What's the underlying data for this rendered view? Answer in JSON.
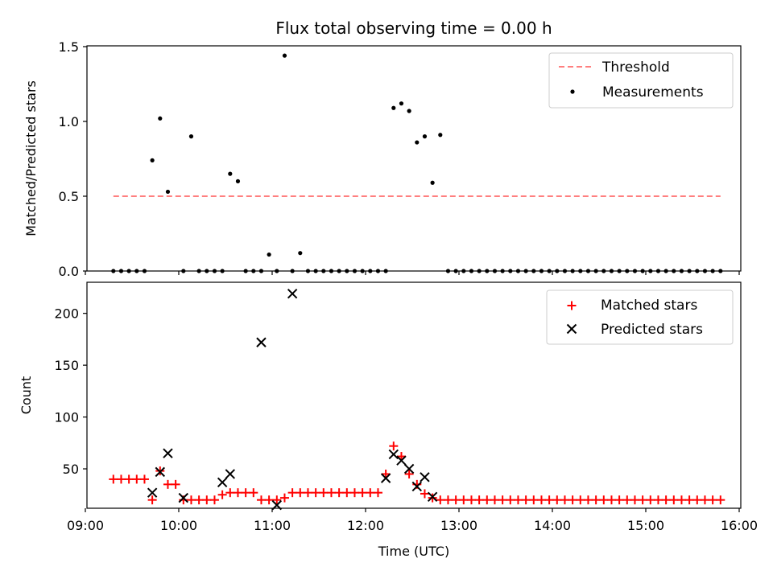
{
  "chart_data": [
    {
      "type": "scatter",
      "title": "Flux total observing time = 0.00 h",
      "xlabel": "",
      "ylabel": "Matched/Predicted stars",
      "ylim": [
        0.0,
        1.5
      ],
      "xlim": [
        "09:00",
        "16:00"
      ],
      "yticks": [
        "0.0",
        "0.5",
        "1.0",
        "1.5"
      ],
      "threshold": {
        "name": "Threshold",
        "value": 0.5,
        "x_start": "09:18",
        "x_end": "15:48",
        "color": "#ff7f7f"
      },
      "series": [
        {
          "name": "Measurements",
          "color": "#000000",
          "x": [
            "09:18",
            "09:23",
            "09:28",
            "09:33",
            "09:38",
            "09:43",
            "09:48",
            "09:53",
            "10:03",
            "10:08",
            "10:13",
            "10:18",
            "10:23",
            "10:28",
            "10:33",
            "10:38",
            "10:43",
            "10:48",
            "10:53",
            "10:58",
            "11:03",
            "11:08",
            "11:13",
            "11:18",
            "11:23",
            "11:28",
            "11:33",
            "11:38",
            "11:43",
            "11:48",
            "11:53",
            "11:58",
            "12:03",
            "12:08",
            "12:13",
            "12:18",
            "12:23",
            "12:28",
            "12:33",
            "12:38",
            "12:43",
            "12:48",
            "12:53",
            "12:58",
            "13:03",
            "13:08",
            "13:13",
            "13:18",
            "13:23",
            "13:28",
            "13:33",
            "13:38",
            "13:43",
            "13:48",
            "13:53",
            "13:58",
            "14:03",
            "14:08",
            "14:13",
            "14:18",
            "14:23",
            "14:28",
            "14:33",
            "14:38",
            "14:43",
            "14:48",
            "14:53",
            "14:58",
            "15:03",
            "15:08",
            "15:13",
            "15:18",
            "15:23",
            "15:28",
            "15:33",
            "15:38",
            "15:43",
            "15:48"
          ],
          "y": [
            0,
            0,
            0,
            0,
            0,
            0.74,
            1.02,
            0.53,
            0,
            0.9,
            0,
            0,
            0,
            0,
            0.65,
            0.6,
            0,
            0,
            0,
            0.11,
            0,
            1.44,
            0,
            0.12,
            0,
            0,
            0,
            0,
            0,
            0,
            0,
            0,
            0,
            0,
            0,
            1.09,
            1.12,
            1.07,
            0.86,
            0.9,
            0.59,
            0.91,
            0,
            0,
            0,
            0,
            0,
            0,
            0,
            0,
            0,
            0,
            0,
            0,
            0,
            0,
            0,
            0,
            0,
            0,
            0,
            0,
            0,
            0,
            0,
            0,
            0,
            0,
            0,
            0,
            0,
            0,
            0,
            0,
            0,
            0,
            0,
            0
          ]
        }
      ],
      "legend": "top-right"
    },
    {
      "type": "scatter",
      "title": "",
      "xlabel": "Time (UTC)",
      "ylabel": "Count",
      "ylim": [
        12,
        230
      ],
      "xlim": [
        "09:00",
        "16:00"
      ],
      "yticks": [
        "50",
        "100",
        "150",
        "200"
      ],
      "xticks": [
        "09:00",
        "10:00",
        "11:00",
        "12:00",
        "13:00",
        "14:00",
        "15:00",
        "16:00"
      ],
      "series": [
        {
          "name": "Matched stars",
          "color": "#ff0000",
          "marker": "+",
          "x": [
            "09:18",
            "09:23",
            "09:28",
            "09:33",
            "09:38",
            "09:43",
            "09:48",
            "09:53",
            "09:58",
            "10:03",
            "10:08",
            "10:13",
            "10:18",
            "10:23",
            "10:28",
            "10:33",
            "10:38",
            "10:43",
            "10:48",
            "10:53",
            "10:58",
            "11:03",
            "11:08",
            "11:13",
            "11:18",
            "11:23",
            "11:28",
            "11:33",
            "11:38",
            "11:43",
            "11:48",
            "11:53",
            "11:58",
            "12:03",
            "12:08",
            "12:13",
            "12:18",
            "12:23",
            "12:28",
            "12:33",
            "12:38",
            "12:43",
            "12:48",
            "12:53",
            "12:58",
            "13:03",
            "13:08",
            "13:13",
            "13:18",
            "13:23",
            "13:28",
            "13:33",
            "13:38",
            "13:43",
            "13:48",
            "13:53",
            "13:58",
            "14:03",
            "14:08",
            "14:13",
            "14:18",
            "14:23",
            "14:28",
            "14:33",
            "14:38",
            "14:43",
            "14:48",
            "14:53",
            "14:58",
            "15:03",
            "15:08",
            "15:13",
            "15:18",
            "15:23",
            "15:28",
            "15:33",
            "15:38",
            "15:43",
            "15:48"
          ],
          "y": [
            40,
            40,
            40,
            40,
            40,
            20,
            48,
            35,
            35,
            20,
            20,
            20,
            20,
            20,
            25,
            27,
            27,
            27,
            27,
            20,
            20,
            20,
            22,
            27,
            27,
            27,
            27,
            27,
            27,
            27,
            27,
            27,
            27,
            27,
            27,
            45,
            72,
            62,
            45,
            35,
            26,
            22,
            20,
            20,
            20,
            20,
            20,
            20,
            20,
            20,
            20,
            20,
            20,
            20,
            20,
            20,
            20,
            20,
            20,
            20,
            20,
            20,
            20,
            20,
            20,
            20,
            20,
            20,
            20,
            20,
            20,
            20,
            20,
            20,
            20,
            20,
            20,
            20,
            20
          ]
        },
        {
          "name": "Predicted stars",
          "color": "#000000",
          "marker": "x",
          "x": [
            "09:43",
            "09:48",
            "09:53",
            "10:03",
            "10:28",
            "10:33",
            "10:53",
            "11:03",
            "11:13",
            "12:13",
            "12:18",
            "12:23",
            "12:28",
            "12:33",
            "12:38",
            "12:43"
          ],
          "y": [
            27,
            47,
            65,
            22,
            37,
            45,
            172,
            15,
            219,
            41,
            64,
            58,
            50,
            33,
            42,
            23
          ]
        }
      ],
      "legend": "top-right"
    }
  ]
}
